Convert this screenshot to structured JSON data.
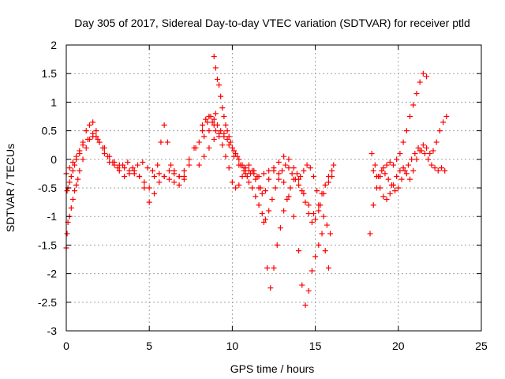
{
  "chart_data": {
    "type": "scatter",
    "title": "Day 305 of 2017, Sidereal Day-to-day VTEC variation (SDTVAR) for receiver ptld",
    "xlabel": "GPS time / hours",
    "ylabel": "SDTVAR / TECUs",
    "xlim": [
      0,
      25
    ],
    "ylim": [
      -3,
      2
    ],
    "xticks": [
      0,
      5,
      10,
      15,
      20,
      25
    ],
    "xtick_labels": [
      "0",
      "5",
      "10",
      "15",
      "20",
      "25"
    ],
    "yticks": [
      -3,
      -2.5,
      -2,
      -1.5,
      -1,
      -0.5,
      0,
      0.5,
      1,
      1.5,
      2
    ],
    "ytick_labels": [
      "-3",
      "-2.5",
      "-2",
      "-1.5",
      "-1",
      "-0.5",
      "0",
      "0.5",
      "1",
      "1.5",
      "2"
    ],
    "grid": true,
    "marker": "+",
    "color": "#ff0000",
    "series": [
      {
        "name": "a1",
        "x": [
          0.0,
          0.05,
          0.1,
          0.2,
          0.3,
          0.4,
          0.5,
          0.6,
          0.7,
          0.8,
          1.0,
          1.2,
          1.4,
          1.6,
          1.8,
          2.0,
          2.3,
          2.6,
          2.9,
          3.2,
          3.5,
          3.8,
          4.1,
          4.4,
          4.7,
          5.0,
          5.3,
          5.6,
          5.9,
          6.2,
          6.5,
          6.8,
          7.1,
          7.4,
          7.8,
          8.2,
          8.6,
          9.0
        ],
        "y": [
          -1.55,
          -1.3,
          -1.1,
          -1.0,
          -0.85,
          -0.7,
          -0.55,
          -0.45,
          -0.35,
          -0.2,
          0.0,
          0.2,
          0.35,
          0.45,
          0.4,
          0.3,
          0.2,
          0.05,
          -0.05,
          -0.1,
          -0.15,
          -0.2,
          -0.25,
          -0.3,
          -0.4,
          -0.5,
          -0.3,
          -0.25,
          -0.3,
          -0.35,
          -0.4,
          -0.45,
          -0.3,
          -0.1,
          0.2,
          0.5,
          0.75,
          0.8
        ]
      },
      {
        "name": "a2",
        "x": [
          0.05,
          0.1,
          0.2,
          0.3,
          0.4,
          0.5,
          0.6,
          0.8,
          1.0,
          1.2,
          1.4,
          1.6,
          1.8,
          2.0,
          2.3,
          2.6,
          2.9,
          3.2,
          3.5,
          3.8,
          4.1,
          4.4,
          4.7,
          5.0,
          5.3,
          5.6,
          5.9,
          6.2,
          6.5,
          6.8,
          7.1
        ],
        "y": [
          -0.55,
          -0.5,
          -0.4,
          -0.3,
          -0.2,
          -0.1,
          0.0,
          0.1,
          0.3,
          0.5,
          0.6,
          0.65,
          0.5,
          0.3,
          0.1,
          -0.05,
          -0.1,
          -0.2,
          -0.3,
          -0.25,
          -0.2,
          -0.3,
          -0.5,
          -0.75,
          -0.6,
          -0.4,
          -0.3,
          -0.2,
          -0.25,
          -0.3,
          -0.35
        ]
      },
      {
        "name": "a3",
        "x": [
          0.0,
          0.2,
          0.4,
          0.6,
          0.8,
          1.0,
          1.3,
          1.6,
          1.9,
          2.2,
          2.5,
          2.8,
          3.1,
          3.4,
          3.7,
          4.0,
          4.3,
          4.6,
          4.9,
          5.2,
          5.5,
          5.7,
          5.9,
          6.1,
          6.3,
          6.5,
          6.8,
          7.1,
          7.4,
          7.7,
          8.0,
          8.3,
          8.6,
          8.9
        ],
        "y": [
          -0.25,
          -0.15,
          -0.05,
          0.05,
          0.15,
          0.25,
          0.35,
          0.4,
          0.35,
          0.2,
          0.05,
          -0.05,
          -0.15,
          -0.1,
          -0.05,
          -0.15,
          -0.1,
          -0.05,
          -0.15,
          -0.2,
          -0.1,
          0.3,
          0.6,
          0.3,
          -0.1,
          -0.2,
          -0.3,
          -0.2,
          0.0,
          0.2,
          0.3,
          0.4,
          0.5,
          0.6
        ]
      },
      {
        "name": "b1",
        "x": [
          8.9,
          9.0,
          9.1,
          9.2,
          9.3,
          9.4,
          9.5,
          9.6,
          9.7,
          9.8,
          10.0,
          10.2,
          10.4,
          10.6,
          10.8,
          11.0,
          11.2,
          11.4,
          11.6,
          11.8,
          12.0,
          12.2,
          12.4,
          12.6,
          12.8,
          13.0,
          13.2,
          13.4,
          13.6,
          13.8,
          14.0,
          14.2,
          14.4,
          14.6,
          14.8,
          15.0,
          15.2,
          15.4,
          15.6,
          15.8,
          16.0,
          16.1
        ],
        "y": [
          1.8,
          1.6,
          1.4,
          1.3,
          1.1,
          0.9,
          0.75,
          0.6,
          0.5,
          0.4,
          0.2,
          0.1,
          0.0,
          -0.1,
          -0.25,
          -0.4,
          -0.5,
          -0.65,
          -0.8,
          -0.95,
          -1.05,
          -0.9,
          -0.7,
          -0.5,
          -0.35,
          -0.2,
          -0.1,
          -0.15,
          -0.25,
          -0.35,
          -0.45,
          -0.55,
          -0.75,
          -0.95,
          -1.1,
          -1.05,
          -0.8,
          -0.6,
          -0.45,
          -0.3,
          -0.2,
          -0.1
        ]
      },
      {
        "name": "b2",
        "x": [
          8.5,
          8.7,
          8.9,
          9.1,
          9.3,
          9.5,
          9.7,
          9.9,
          10.1,
          10.3,
          10.5,
          10.7,
          10.9,
          11.1,
          11.3,
          11.5,
          11.7,
          11.9,
          12.1,
          12.3,
          12.5,
          12.7,
          12.9,
          13.1,
          13.3,
          13.5,
          13.7,
          13.9,
          14.1,
          14.3,
          14.5,
          14.7,
          14.9,
          15.1,
          15.3,
          15.5,
          15.7,
          15.9
        ],
        "y": [
          0.65,
          0.75,
          0.7,
          0.6,
          0.5,
          0.45,
          0.35,
          0.3,
          0.15,
          0.05,
          -0.1,
          -0.2,
          -0.3,
          -0.25,
          -0.2,
          -0.3,
          -0.5,
          -1.1,
          -1.9,
          -2.25,
          -1.9,
          -1.5,
          -1.2,
          -0.9,
          -0.7,
          -0.5,
          -0.35,
          -0.25,
          -0.3,
          -0.2,
          -0.1,
          -0.15,
          -0.3,
          -0.55,
          -0.8,
          -1.0,
          -1.15,
          -1.3
        ]
      },
      {
        "name": "b3",
        "x": [
          8.0,
          8.3,
          8.6,
          8.9,
          9.2,
          9.5,
          9.8,
          10.1,
          10.4,
          10.7,
          11.0,
          11.3,
          11.6,
          11.9,
          12.2,
          12.5,
          12.8,
          13.1,
          13.4,
          13.7,
          14.0,
          14.2,
          14.4,
          14.6,
          14.8,
          15.0,
          15.2,
          15.4,
          15.6,
          15.8
        ],
        "y": [
          -0.1,
          0.05,
          0.2,
          0.35,
          0.45,
          0.4,
          0.25,
          0.05,
          -0.1,
          -0.15,
          -0.2,
          -0.25,
          -0.3,
          -0.25,
          -0.2,
          -0.15,
          -0.25,
          -0.4,
          -0.65,
          -1.0,
          -1.6,
          -2.2,
          -2.55,
          -2.3,
          -1.95,
          -1.7,
          -1.5,
          -1.3,
          -1.6,
          -1.9
        ]
      },
      {
        "name": "b4",
        "x": [
          8.2,
          8.4,
          8.6,
          8.8,
          9.0,
          9.2,
          9.4,
          9.6,
          9.8,
          10.0,
          10.2,
          10.4,
          10.6,
          10.8,
          11.0,
          11.2,
          11.4,
          11.6,
          11.8,
          12.0,
          12.2,
          12.5,
          12.8,
          13.1,
          13.4,
          13.7,
          14.0,
          14.3,
          14.6,
          14.9,
          15.2,
          15.5,
          15.8,
          16.0
        ],
        "y": [
          0.6,
          0.7,
          0.75,
          0.65,
          0.5,
          0.4,
          0.25,
          0.05,
          -0.15,
          -0.4,
          -0.5,
          -0.45,
          -0.3,
          -0.15,
          -0.1,
          -0.2,
          -0.35,
          -0.5,
          -0.6,
          -0.55,
          -0.35,
          -0.2,
          -0.05,
          0.05,
          0.0,
          -0.15,
          -0.35,
          -0.6,
          -0.8,
          -0.95,
          -0.9,
          -0.6,
          -0.4,
          -0.3
        ]
      },
      {
        "name": "c1",
        "x": [
          18.3,
          18.5,
          18.7,
          18.9,
          19.1,
          19.3,
          19.5,
          19.7,
          19.9,
          20.1,
          20.3,
          20.5,
          20.7,
          20.9,
          21.1,
          21.3,
          21.5,
          21.7
        ],
        "y": [
          -1.3,
          -0.8,
          -0.5,
          -0.3,
          -0.15,
          -0.1,
          -0.05,
          -0.1,
          0.0,
          0.1,
          0.3,
          0.5,
          0.75,
          0.95,
          1.15,
          1.35,
          1.5,
          1.45
        ]
      },
      {
        "name": "c2",
        "x": [
          18.4,
          18.6,
          18.8,
          19.0,
          19.2,
          19.4,
          19.6,
          19.8,
          20.0,
          20.2,
          20.4,
          20.6,
          20.8,
          21.0,
          21.2,
          21.4,
          21.6,
          21.8,
          22.0,
          22.2,
          22.4,
          22.6,
          22.8
        ],
        "y": [
          0.1,
          -0.1,
          -0.3,
          -0.2,
          -0.25,
          -0.35,
          -0.45,
          -0.55,
          -0.5,
          -0.35,
          -0.2,
          -0.1,
          0.0,
          0.1,
          0.2,
          0.15,
          0.1,
          0.0,
          -0.1,
          -0.15,
          -0.2,
          -0.15,
          -0.2
        ]
      },
      {
        "name": "c3",
        "x": [
          18.5,
          18.7,
          18.9,
          19.1,
          19.3,
          19.5,
          19.7,
          19.9,
          20.1,
          20.3,
          20.5,
          20.7,
          20.9,
          21.1,
          21.3,
          21.5,
          21.7,
          21.9,
          22.1,
          22.3,
          22.5,
          22.7,
          22.9
        ],
        "y": [
          -0.2,
          -0.3,
          -0.5,
          -0.65,
          -0.7,
          -0.6,
          -0.45,
          -0.3,
          -0.2,
          -0.15,
          -0.25,
          -0.35,
          -0.2,
          0.0,
          0.15,
          0.25,
          0.2,
          0.1,
          0.15,
          0.3,
          0.5,
          0.65,
          0.75
        ]
      }
    ]
  }
}
